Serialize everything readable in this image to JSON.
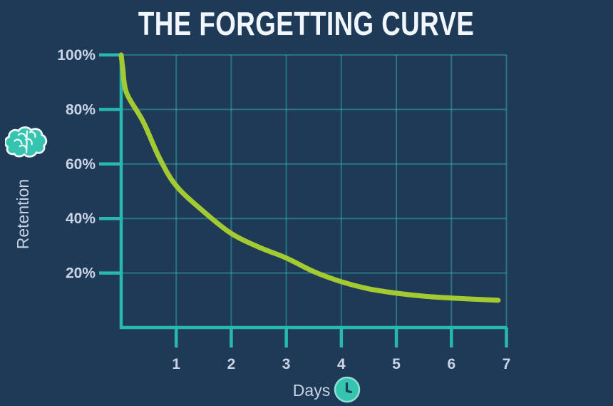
{
  "title": "THE FORGETTING CURVE",
  "colors": {
    "background": "#1f3a57",
    "axis_teal": "#29b7b1",
    "grid_teal": "rgba(56,198,190,0.42)",
    "curve_green": "#a3cb31",
    "tick_label": "#cad4e6",
    "title_text": "#f0f6fc",
    "icon_fill": "#35c4ae",
    "icon_ring": "#8fdfd4",
    "icon_outline": "#ecf5f7",
    "icon_hands": "#1f3a57"
  },
  "icons": {
    "y_axis_icon": "brain-icon",
    "x_axis_icon": "clock-icon"
  },
  "chart_data": {
    "type": "line",
    "title": "THE FORGETTING CURVE",
    "xlabel": "Days",
    "ylabel": "Retention",
    "xlim": [
      0,
      7
    ],
    "ylim": [
      0,
      100
    ],
    "grid": true,
    "legend": "none",
    "x_ticks": [
      {
        "value": 1,
        "label": "1"
      },
      {
        "value": 2,
        "label": "2"
      },
      {
        "value": 3,
        "label": "3"
      },
      {
        "value": 4,
        "label": "4"
      },
      {
        "value": 5,
        "label": "5"
      },
      {
        "value": 6,
        "label": "6"
      },
      {
        "value": 7,
        "label": "7"
      }
    ],
    "y_ticks": [
      {
        "value": 20,
        "label": "20%"
      },
      {
        "value": 40,
        "label": "40%"
      },
      {
        "value": 60,
        "label": "60%"
      },
      {
        "value": 80,
        "label": "80%"
      },
      {
        "value": 100,
        "label": "100%"
      }
    ],
    "series": [
      {
        "name": "retention",
        "x": [
          0,
          1,
          2,
          3,
          4,
          5,
          6,
          7
        ],
        "values": [
          100,
          52,
          34.5,
          25.5,
          16.5,
          12.5,
          10.8,
          10
        ]
      }
    ],
    "curve_render_points": [
      [
        0,
        100
      ],
      [
        0.03,
        95
      ],
      [
        0.1,
        86
      ],
      [
        0.4,
        75.5
      ],
      [
        0.7,
        62
      ],
      [
        1,
        52
      ],
      [
        1.5,
        42.5
      ],
      [
        2,
        34.5
      ],
      [
        2.5,
        29.5
      ],
      [
        3,
        25.5
      ],
      [
        3.5,
        20.5
      ],
      [
        4,
        16.8
      ],
      [
        4.5,
        14.2
      ],
      [
        5,
        12.6
      ],
      [
        5.5,
        11.5
      ],
      [
        6,
        10.8
      ],
      [
        6.4,
        10.4
      ],
      [
        6.85,
        10
      ]
    ]
  }
}
